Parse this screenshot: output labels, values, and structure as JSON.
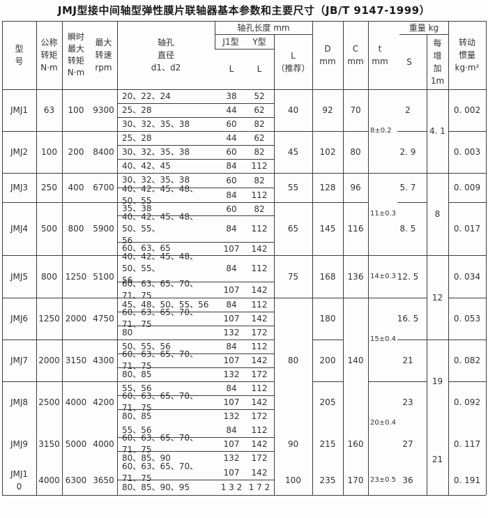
{
  "title": "JMJ型接中间轴型弹性膜片联轴器基本参数和主要尺寸（JB/T 9147-1999）",
  "header": {
    "model": "型\n号",
    "nominal_torque": "公称\n转矩\nN·m",
    "instant_max_torque": "瞬时\n最大\n转矩\nN·m",
    "max_speed": "最大\n转速\nrpm",
    "bore_diameter": "轴孔\n直径\nd1、d2",
    "bore_length": "轴孔长度 mm",
    "j1_type": "J1型",
    "y_type": "Y型",
    "j1_l": "L",
    "y_l": "L",
    "l_recommended": "L\n（推荐）",
    "d_col": "D\nmm",
    "c_col": "C\nmm",
    "t_col": "t\nmm",
    "weight": "重量 kg",
    "s_col": "S",
    "per_meter": "每\n增\n加\n1m",
    "inertia": "转动\n惯量\nkg·m²"
  },
  "models": [
    {
      "name": "JMJ1",
      "torque": "63",
      "max_torque": "100",
      "speed": "9300",
      "l": "40",
      "D": "92",
      "C": "70",
      "s": "2",
      "inertia": "0. 002",
      "bores": [
        {
          "d": "20、22、24",
          "j1": "38",
          "y": "52"
        },
        {
          "d": "25、28",
          "j1": "44",
          "y": "62"
        },
        {
          "d": "30、32、35、38",
          "j1": "60",
          "y": "82"
        }
      ]
    },
    {
      "name": "JMJ2",
      "torque": "100",
      "max_torque": "200",
      "speed": "8400",
      "l": "45",
      "D": "102",
      "C": "80",
      "s": "2. 9",
      "inertia": "0. 003",
      "bores": [
        {
          "d": "25、28",
          "j1": "44",
          "y": "62"
        },
        {
          "d": "30、32、35、38",
          "j1": "60",
          "y": "82"
        },
        {
          "d": "40、42、45",
          "j1": "84",
          "y": "112"
        }
      ]
    },
    {
      "name": "JMJ3",
      "torque": "250",
      "max_torque": "400",
      "speed": "6700",
      "l": "55",
      "D": "128",
      "C": "96",
      "s": "5. 7",
      "inertia": "0. 009",
      "bores": [
        {
          "d": "30、32、35、38",
          "j1": "60",
          "y": "82"
        },
        {
          "d": "40、42、45、48、50、55",
          "j1": "84",
          "y": "112"
        }
      ]
    },
    {
      "name": "JMJ4",
      "torque": "500",
      "max_torque": "800",
      "speed": "5900",
      "l": "65",
      "D": "145",
      "C": "116",
      "s": "8. 5",
      "inertia": "0. 017",
      "bores": [
        {
          "d": "35、38",
          "j1": "60",
          "y": "82"
        },
        {
          "d": "40、42、45、48、50、55、\n56",
          "j1": "84",
          "y": "112"
        },
        {
          "d": "60、63、65",
          "j1": "107",
          "y": "142"
        }
      ]
    },
    {
      "name": "JMJ5",
      "torque": "800",
      "max_torque": "1250",
      "speed": "5100",
      "l": "75",
      "D": "168",
      "C": "136",
      "s": "12. 5",
      "inertia": "0. 034",
      "bores": [
        {
          "d": "40、42、45、48、50、55、\n56",
          "j1": "84",
          "y": "112"
        },
        {
          "d": "60、63、65、70、71、75",
          "j1": "107",
          "y": "142"
        }
      ]
    },
    {
      "name": "JMJ6",
      "torque": "1250",
      "max_torque": "2000",
      "speed": "4750",
      "l": "",
      "D": "180",
      "C": "",
      "s": "16. 5",
      "inertia": "0. 053",
      "bores": [
        {
          "d": "45、48、50、55、56",
          "j1": "84",
          "y": "112"
        },
        {
          "d": "60、63、65、70、71、75",
          "j1": "107",
          "y": "142"
        },
        {
          "d": "80",
          "j1": "132",
          "y": "172"
        }
      ]
    },
    {
      "name": "JMJ7",
      "torque": "2000",
      "max_torque": "3150",
      "speed": "4300",
      "l": "80",
      "D": "200",
      "C": "140",
      "s": "21",
      "inertia": "0. 082",
      "bores": [
        {
          "d": "50、55、56",
          "j1": "84",
          "y": "112"
        },
        {
          "d": "60、63、65、70、71、75",
          "j1": "107",
          "y": "142"
        },
        {
          "d": "80、85",
          "j1": "132",
          "y": "172"
        }
      ]
    },
    {
      "name": "JMJ8",
      "torque": "2500",
      "max_torque": "4000",
      "speed": "4200",
      "l": "",
      "D": "205",
      "C": "",
      "s": "23",
      "inertia": "0. 092",
      "bores": [
        {
          "d": "55、56",
          "j1": "84",
          "y": "112"
        },
        {
          "d": "60、63、65、70、71、75",
          "j1": "107",
          "y": "142"
        },
        {
          "d": "80、85",
          "j1": "132",
          "y": "172"
        }
      ]
    },
    {
      "name": "JMJ9",
      "torque": "3150",
      "max_torque": "5000",
      "speed": "4000",
      "l": "90",
      "D": "215",
      "C": "160",
      "s": "27",
      "inertia": "0. 117",
      "bores": [
        {
          "d": "55、56",
          "j1": "84",
          "y": "112"
        },
        {
          "d": "60、63、65、70、71、75",
          "j1": "107",
          "y": "142"
        },
        {
          "d": "80、85、90",
          "j1": "132",
          "y": "172"
        }
      ]
    },
    {
      "name": "JMJ1\n0",
      "torque": "4000",
      "max_torque": "6300",
      "speed": "3650",
      "l": "100",
      "D": "235",
      "C": "170",
      "s": "36",
      "inertia": "0. 191",
      "bores": [
        {
          "d": "60、63、65、70、71、75",
          "j1": "107",
          "y": "142"
        },
        {
          "d": "80、85、90、95",
          "j1": "1 3 2",
          "y": "1 7 2"
        }
      ]
    }
  ],
  "t_groups": [
    "8±0.2",
    "11±0.3",
    "14±0.3",
    "15±0.4",
    "20±0.4",
    "23±0.5"
  ],
  "per_meter_groups": [
    "4. 1",
    "8",
    "12",
    "19",
    "21"
  ],
  "colors": {
    "line": "#3c3c3c",
    "text": "#303030",
    "background": "#fdfdfd"
  }
}
